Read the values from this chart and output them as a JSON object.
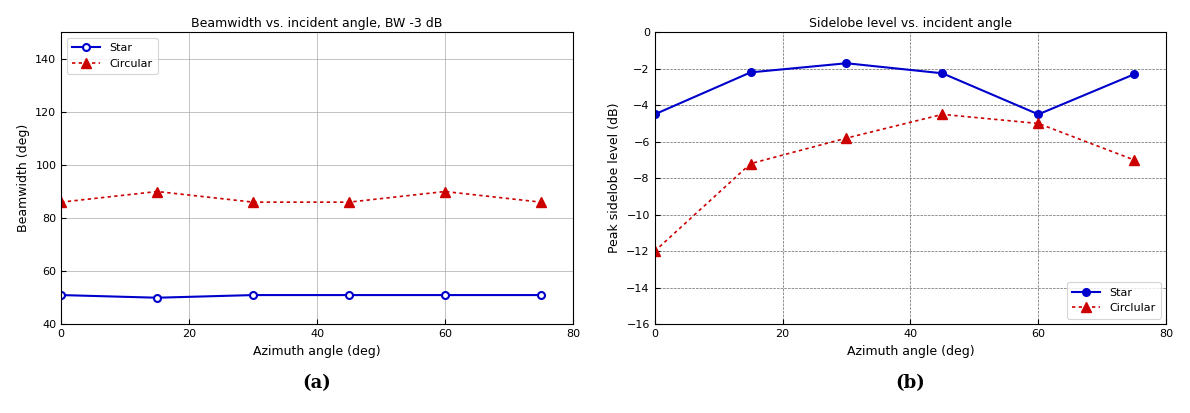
{
  "plot_a": {
    "title": "Beamwidth vs. incident angle, BW -3 dB",
    "xlabel": "Azimuth angle (deg)",
    "ylabel": "Beamwidth (deg)",
    "xlim": [
      0,
      80
    ],
    "ylim": [
      40,
      150
    ],
    "yticks": [
      40,
      60,
      80,
      100,
      120,
      140
    ],
    "xticks": [
      0,
      20,
      40,
      60,
      80
    ],
    "star_x": [
      0,
      15,
      30,
      45,
      60,
      75
    ],
    "star_y": [
      51,
      50,
      51,
      51,
      51,
      51
    ],
    "circular_x": [
      0,
      15,
      30,
      45,
      60,
      75
    ],
    "circular_y": [
      86,
      90,
      86,
      86,
      90,
      86
    ],
    "star_color": "#0000cc",
    "circular_color": "#cc0000",
    "label_a": "(a)"
  },
  "plot_b": {
    "title": "Sidelobe level vs. incident angle",
    "xlabel": "Azimuth angle (deg)",
    "ylabel": "Peak sidelobe level (dB)",
    "xlim": [
      0,
      80
    ],
    "ylim": [
      -16,
      0
    ],
    "yticks": [
      -16,
      -14,
      -12,
      -10,
      -8,
      -6,
      -4,
      -2,
      0
    ],
    "xticks": [
      0,
      20,
      40,
      60,
      80
    ],
    "star_x": [
      0,
      15,
      30,
      45,
      60,
      75
    ],
    "star_y": [
      -4.5,
      -2.2,
      -1.7,
      -2.25,
      -4.5,
      -2.3
    ],
    "circular_x": [
      0,
      15,
      30,
      45,
      60,
      75
    ],
    "circular_y": [
      -12.0,
      -7.2,
      -5.8,
      -4.5,
      -5.0,
      -7.0
    ],
    "star_color": "#0000cc",
    "circular_color": "#cc0000",
    "label_b": "(b)"
  }
}
